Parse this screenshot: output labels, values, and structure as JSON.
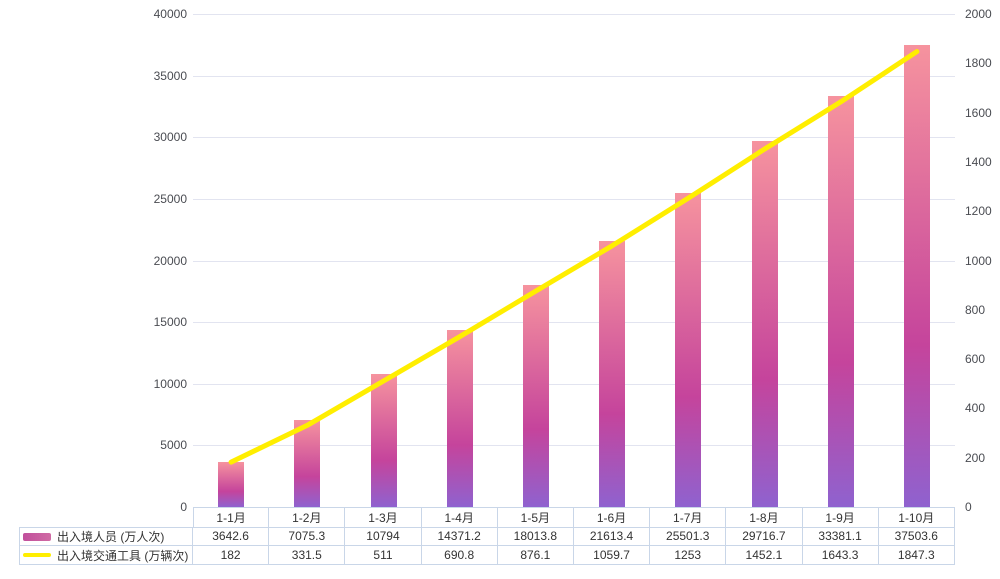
{
  "chart_data": {
    "type": "bar",
    "subtype": "bar-line-combo",
    "title": "",
    "categories": [
      "1-1月",
      "1-2月",
      "1-3月",
      "1-4月",
      "1-5月",
      "1-6月",
      "1-7月",
      "1-8月",
      "1-9月",
      "1-10月"
    ],
    "series": [
      {
        "name": "出入境人员 (万人次)",
        "type": "bar",
        "y_axis": "left",
        "values": [
          3642.6,
          7075.3,
          10794,
          14371.2,
          18013.8,
          21613.4,
          25501.3,
          29716.7,
          33381.1,
          37503.6
        ],
        "gradient_top": "#f6939e",
        "gradient_mid": "#c5449c",
        "gradient_bottom": "#8f62cf"
      },
      {
        "name": "出入境交通工具 (万辆次)",
        "type": "line",
        "y_axis": "right",
        "values": [
          182,
          331.5,
          511,
          690.8,
          876.1,
          1059.7,
          1253,
          1452.1,
          1643.3,
          1847.3
        ],
        "color": "#ffee00"
      }
    ],
    "left_axis": {
      "min": 0,
      "max": 40000,
      "ticks": [
        0,
        5000,
        10000,
        15000,
        20000,
        25000,
        30000,
        35000,
        40000
      ]
    },
    "right_axis": {
      "min": 0,
      "max": 2000,
      "ticks": [
        0,
        200,
        400,
        600,
        800,
        1000,
        1200,
        1400,
        1600,
        1800,
        2000
      ]
    },
    "grid": true,
    "legend_position": "table-left",
    "gridline_color": "#e2e4f0",
    "table_border_color": "#c9d6e8"
  }
}
